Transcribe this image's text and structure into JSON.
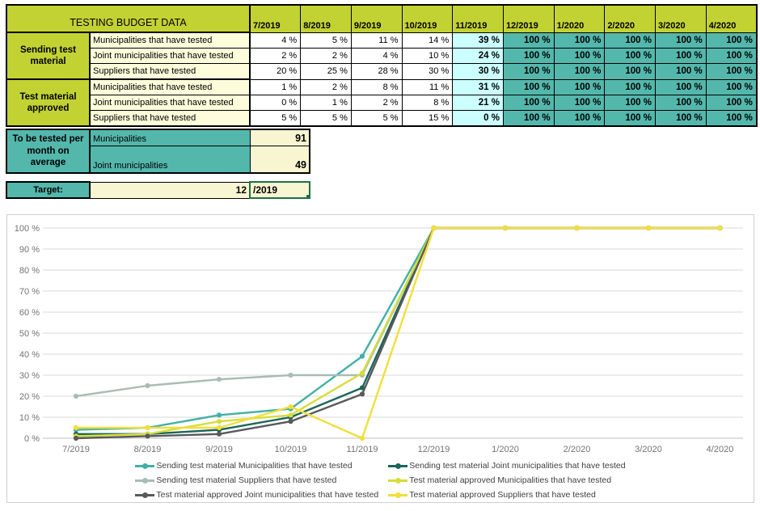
{
  "colors": {
    "header_green": "#c3d233",
    "teal": "#54b7ac",
    "light_cyan": "#ccffff",
    "pale_yellow": "#fdfcdb",
    "cream": "#f8f5d2",
    "selection_green": "#1f7145",
    "gridline": "#d9d9d9",
    "axis_line": "#bfbfbf"
  },
  "table": {
    "title": "TESTING BUDGET DATA",
    "months": [
      "7/2019",
      "8/2019",
      "9/2019",
      "10/2019",
      "11/2019",
      "12/2019",
      "1/2020",
      "2/2020",
      "3/2020",
      "4/2020"
    ],
    "value_suffix": " %",
    "groups": [
      {
        "label": "Sending test material",
        "rows": [
          {
            "label": "Municipalities that have tested",
            "values": [
              4,
              5,
              11,
              14,
              39,
              100,
              100,
              100,
              100,
              100
            ]
          },
          {
            "label": "Joint municipalities that have tested",
            "values": [
              2,
              2,
              4,
              10,
              24,
              100,
              100,
              100,
              100,
              100
            ]
          },
          {
            "label": "Suppliers that have tested",
            "values": [
              20,
              25,
              28,
              30,
              30,
              100,
              100,
              100,
              100,
              100
            ]
          }
        ]
      },
      {
        "label": "Test material approved",
        "rows": [
          {
            "label": "Municipalities that have tested",
            "values": [
              1,
              2,
              8,
              11,
              31,
              100,
              100,
              100,
              100,
              100
            ]
          },
          {
            "label": "Joint municipalities that have tested",
            "values": [
              0,
              1,
              2,
              8,
              21,
              100,
              100,
              100,
              100,
              100
            ]
          },
          {
            "label": "Suppliers that have tested",
            "values": [
              5,
              5,
              5,
              15,
              0,
              100,
              100,
              100,
              100,
              100
            ]
          }
        ]
      }
    ]
  },
  "averages": {
    "label": "To be tested per month on average",
    "rows": [
      {
        "label": "Municipalities",
        "value": "91"
      },
      {
        "label": "Joint municipalities",
        "value": "49"
      }
    ]
  },
  "target": {
    "label": "Target:",
    "value": "12",
    "month_cell": "/2019"
  },
  "chart_data": {
    "type": "line",
    "x": [
      "7/2019",
      "8/2019",
      "9/2019",
      "10/2019",
      "11/2019",
      "12/2019",
      "1/2020",
      "2/2020",
      "3/2020",
      "4/2020"
    ],
    "ylim": [
      0,
      100
    ],
    "ytick_step": 10,
    "ytick_suffix": " %",
    "grid": true,
    "legend_position": "bottom",
    "series": [
      {
        "name": "Sending test material Municipalities that have tested",
        "color": "#41b0a7",
        "values": [
          4,
          5,
          11,
          14,
          39,
          100,
          100,
          100,
          100,
          100
        ]
      },
      {
        "name": "Sending test material Joint municipalities that have tested",
        "color": "#1a665b",
        "values": [
          2,
          2,
          4,
          10,
          24,
          100,
          100,
          100,
          100,
          100
        ]
      },
      {
        "name": "Sending test material Suppliers that have tested",
        "color": "#a9bcb1",
        "values": [
          20,
          25,
          28,
          30,
          30,
          100,
          100,
          100,
          100,
          100
        ]
      },
      {
        "name": "Test material approved Municipalities that have tested",
        "color": "#d7dd39",
        "values": [
          1,
          2,
          8,
          11,
          31,
          100,
          100,
          100,
          100,
          100
        ]
      },
      {
        "name": "Test material approved Joint municipalities that have tested",
        "color": "#595959",
        "values": [
          0,
          1,
          2,
          8,
          21,
          100,
          100,
          100,
          100,
          100
        ]
      },
      {
        "name": "Test material approved Suppliers that have tested",
        "color": "#f1df3b",
        "values": [
          5,
          5,
          5,
          15,
          0,
          100,
          100,
          100,
          100,
          100
        ]
      }
    ]
  }
}
